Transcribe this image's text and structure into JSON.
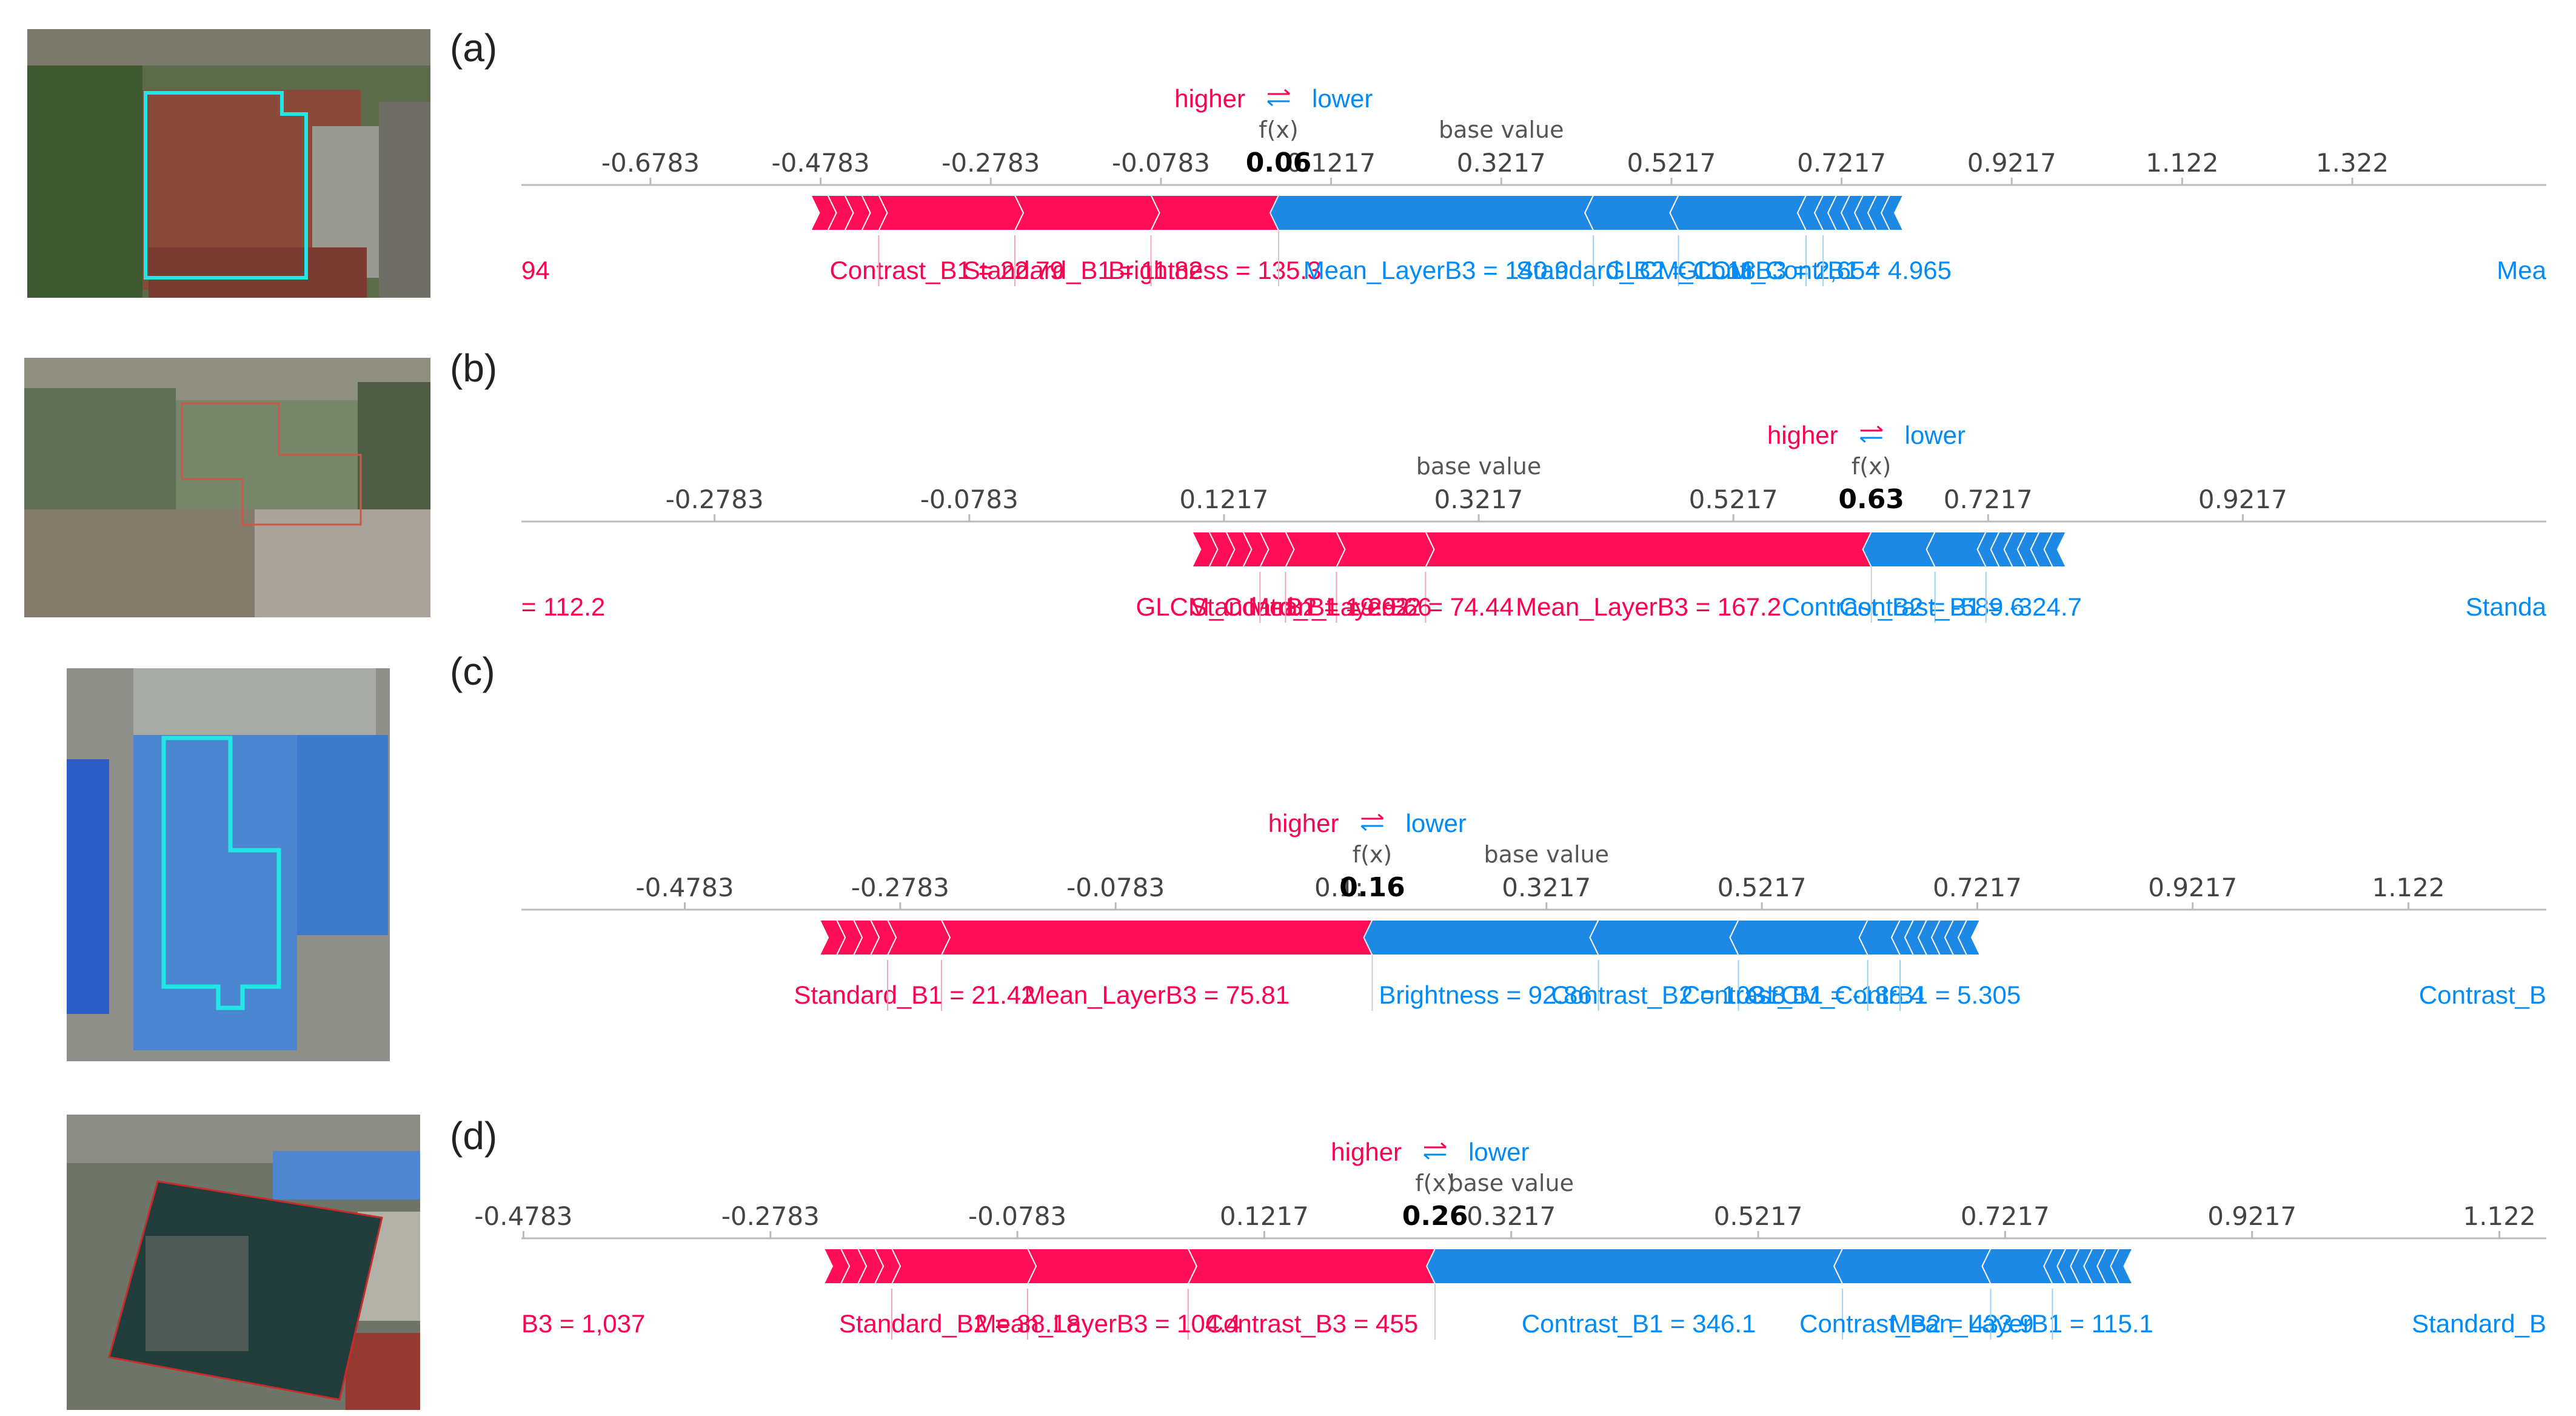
{
  "colors": {
    "higher": "#ff0051",
    "lower": "#008bfb",
    "higher_bar": "#ff0d57",
    "lower_bar": "#1e88e5"
  },
  "panels": [
    {
      "letter": "(a)",
      "thumbnail": "aerial-rooftop-red-roof"
    },
    {
      "letter": "(b)",
      "thumbnail": "aerial-rooftop-green-gray"
    },
    {
      "letter": "(c)",
      "thumbnail": "aerial-rooftop-blue-roof"
    },
    {
      "letter": "(d)",
      "thumbnail": "aerial-rooftop-dark-rotated"
    }
  ],
  "chart_data": [
    {
      "type": "bar",
      "panel": "(a)",
      "higher_label": "higher",
      "lower_label": "lower",
      "fx_label": "f(x)",
      "base_label": "base value",
      "fx": 0.06,
      "fx_text": "0.06",
      "base_value": 0.3217,
      "xlim": [
        -0.83,
        1.55
      ],
      "ticks": [
        "-0.6783",
        "-0.4783",
        "-0.2783",
        "-0.0783",
        "0.1217",
        "0.3217",
        "0.5217",
        "0.7217",
        "0.9217",
        "1.122",
        "1.322"
      ],
      "tick_values": [
        -0.6783,
        -0.4783,
        -0.2783,
        -0.0783,
        0.1217,
        0.3217,
        0.5217,
        0.7217,
        0.9217,
        1.122,
        1.322
      ],
      "positive_features": [
        {
          "label": "Contrast_B1 = 22.79",
          "contribution": 0.16
        },
        {
          "label": "Standard_B1 = 11.82",
          "contribution": 0.16
        },
        {
          "label": "Brightness = 135.3",
          "contribution": 0.15
        }
      ],
      "negative_features": [
        {
          "label": "Mean_LayerB3 = 140.9",
          "contribution": 0.37
        },
        {
          "label": "Standard_B2 = 11.18",
          "contribution": 0.1
        },
        {
          "label": "GLCM_ContrB3 = 2,654",
          "contribution": 0.15
        },
        {
          "label": "GLCM_ContrB1 = 4.965",
          "contribution": 0.02
        }
      ],
      "edge_labels": {
        "left": "94",
        "right": "Mea"
      }
    },
    {
      "type": "bar",
      "panel": "(b)",
      "higher_label": "higher",
      "lower_label": "lower",
      "fx_label": "f(x)",
      "base_label": "base value",
      "fx": 0.63,
      "fx_text": "0.63",
      "base_value": 0.3217,
      "xlim": [
        -0.43,
        1.16
      ],
      "ticks": [
        "-0.2783",
        "-0.0783",
        "0.1217",
        "0.3217",
        "0.5217",
        "0.7217",
        "0.9217"
      ],
      "tick_values": [
        -0.2783,
        -0.0783,
        0.1217,
        0.3217,
        0.5217,
        0.7217,
        0.9217
      ],
      "positive_features": [
        {
          "label": "GLCM_ContrB2 = 19.62",
          "contribution": 0.02
        },
        {
          "label": "Standard_B1 = 29.66",
          "contribution": 0.04
        },
        {
          "label": "Mean_LayerB2 = 74.44",
          "contribution": 0.07
        },
        {
          "label": "Mean_LayerB3 = 167.2",
          "contribution": 0.35
        }
      ],
      "negative_features": [
        {
          "label": "Contrast_B2 = -589.6",
          "contribution": 0.05
        },
        {
          "label": "Contrast_B1 = -324.7",
          "contribution": 0.04
        }
      ],
      "edge_labels": {
        "left": "= 112.2",
        "right": "Standa"
      }
    },
    {
      "type": "bar",
      "panel": "(c)",
      "higher_label": "higher",
      "lower_label": "lower",
      "fx_label": "f(x)",
      "base_label": "base value",
      "fx": 0.16,
      "fx_text": "0.16",
      "fx_hidden_tick": "0.1:",
      "base_value": 0.3217,
      "xlim": [
        -0.63,
        1.25
      ],
      "ticks": [
        "-0.4783",
        "-0.2783",
        "-0.0783",
        "0.3217",
        "0.5217",
        "0.7217",
        "0.9217",
        "1.122"
      ],
      "tick_values": [
        -0.4783,
        -0.2783,
        -0.0783,
        0.3217,
        0.5217,
        0.7217,
        0.9217,
        1.122
      ],
      "positive_features": [
        {
          "label": "Standard_B1 = 21.42",
          "contribution": 0.05
        },
        {
          "label": "Mean_LayerB3 = 75.81",
          "contribution": 0.4
        }
      ],
      "negative_features": [
        {
          "label": "Brightness = 92.86",
          "contribution": 0.21
        },
        {
          "label": "Contrast_B2 = 103.8",
          "contribution": 0.13
        },
        {
          "label": "Contrast_B1 = -188.4",
          "contribution": 0.12
        },
        {
          "label": "GLCM_ContrB1 = 5.305",
          "contribution": 0.03
        }
      ],
      "edge_labels": {
        "left": "",
        "right": "Contrast_B"
      }
    },
    {
      "type": "bar",
      "panel": "(d)",
      "higher_label": "higher",
      "lower_label": "lower",
      "fx_label": "f(x)",
      "base_label": "base value",
      "fx": 0.26,
      "fx_text": "0.26",
      "base_value": 0.3217,
      "xlim": [
        -0.48,
        1.16
      ],
      "ticks": [
        "-0.4783",
        "-0.2783",
        "-0.0783",
        "0.1217",
        "0.3217",
        "0.5217",
        "0.7217",
        "0.9217",
        "1.122"
      ],
      "tick_values": [
        -0.4783,
        -0.2783,
        -0.0783,
        0.1217,
        0.3217,
        0.5217,
        0.7217,
        0.9217,
        1.122
      ],
      "positive_features": [
        {
          "label": "Standard_B2 = 38.18",
          "contribution": 0.11
        },
        {
          "label": "Mean_LayerB3 = 104.4",
          "contribution": 0.13
        },
        {
          "label": "Contrast_B3 = 455",
          "contribution": 0.2
        }
      ],
      "negative_features": [
        {
          "label": "Contrast_B1 = 346.1",
          "contribution": 0.33
        },
        {
          "label": "Contrast_B2 = 433.9",
          "contribution": 0.12
        },
        {
          "label": "Mean_LayerB1 = 115.1",
          "contribution": 0.05
        }
      ],
      "edge_labels": {
        "left": "B3 = 1,037",
        "right": "Standard_B"
      }
    }
  ]
}
